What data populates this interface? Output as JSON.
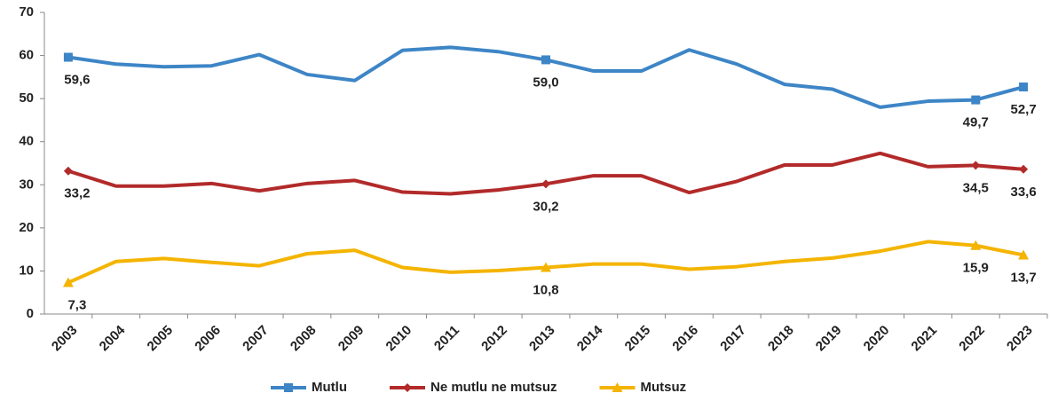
{
  "chart_data": {
    "type": "line",
    "categories": [
      "2003",
      "2004",
      "2005",
      "2006",
      "2007",
      "2008",
      "2009",
      "2010",
      "2011",
      "2012",
      "2013",
      "2014",
      "2015",
      "2016",
      "2017",
      "2018",
      "2019",
      "2020",
      "2021",
      "2022",
      "2023"
    ],
    "series": [
      {
        "name": "Mutlu",
        "color": "#3d85c6",
        "marker": "square",
        "values": [
          59.6,
          58.0,
          57.4,
          57.6,
          60.2,
          55.6,
          54.2,
          61.2,
          61.9,
          60.9,
          59.0,
          56.4,
          56.4,
          61.3,
          58.0,
          53.3,
          52.2,
          48.0,
          49.4,
          49.7,
          52.7
        ],
        "value_labels": [
          "59,6",
          null,
          null,
          null,
          null,
          null,
          null,
          null,
          null,
          null,
          "59,0",
          null,
          null,
          null,
          null,
          null,
          null,
          null,
          null,
          "49,7",
          "52,7"
        ]
      },
      {
        "name": "Ne mutlu ne mutsuz",
        "color": "#b22a2a",
        "marker": "diamond",
        "values": [
          33.2,
          29.7,
          29.7,
          30.3,
          28.6,
          30.3,
          31.0,
          28.3,
          27.9,
          28.8,
          30.2,
          32.1,
          32.1,
          28.2,
          30.8,
          34.6,
          34.6,
          37.3,
          34.2,
          34.5,
          33.6
        ],
        "value_labels": [
          "33,2",
          null,
          null,
          null,
          null,
          null,
          null,
          null,
          null,
          null,
          "30,2",
          null,
          null,
          null,
          null,
          null,
          null,
          null,
          null,
          "34,5",
          "33,6"
        ]
      },
      {
        "name": "Mutsuz",
        "color": "#f4b400",
        "marker": "triangle",
        "values": [
          7.3,
          12.2,
          12.9,
          12.0,
          11.2,
          14.0,
          14.8,
          10.8,
          9.7,
          10.1,
          10.8,
          11.6,
          11.6,
          10.4,
          11.0,
          12.2,
          13.0,
          14.6,
          16.8,
          15.9,
          13.7
        ],
        "value_labels": [
          "7,3",
          null,
          null,
          null,
          null,
          null,
          null,
          null,
          null,
          null,
          "10,8",
          null,
          null,
          null,
          null,
          null,
          null,
          null,
          null,
          "15,9",
          "13,7"
        ]
      }
    ],
    "ylim": [
      0,
      70
    ],
    "yticks": [
      0,
      10,
      20,
      30,
      40,
      50,
      60,
      70
    ],
    "grid": false,
    "legend": "bottom"
  }
}
